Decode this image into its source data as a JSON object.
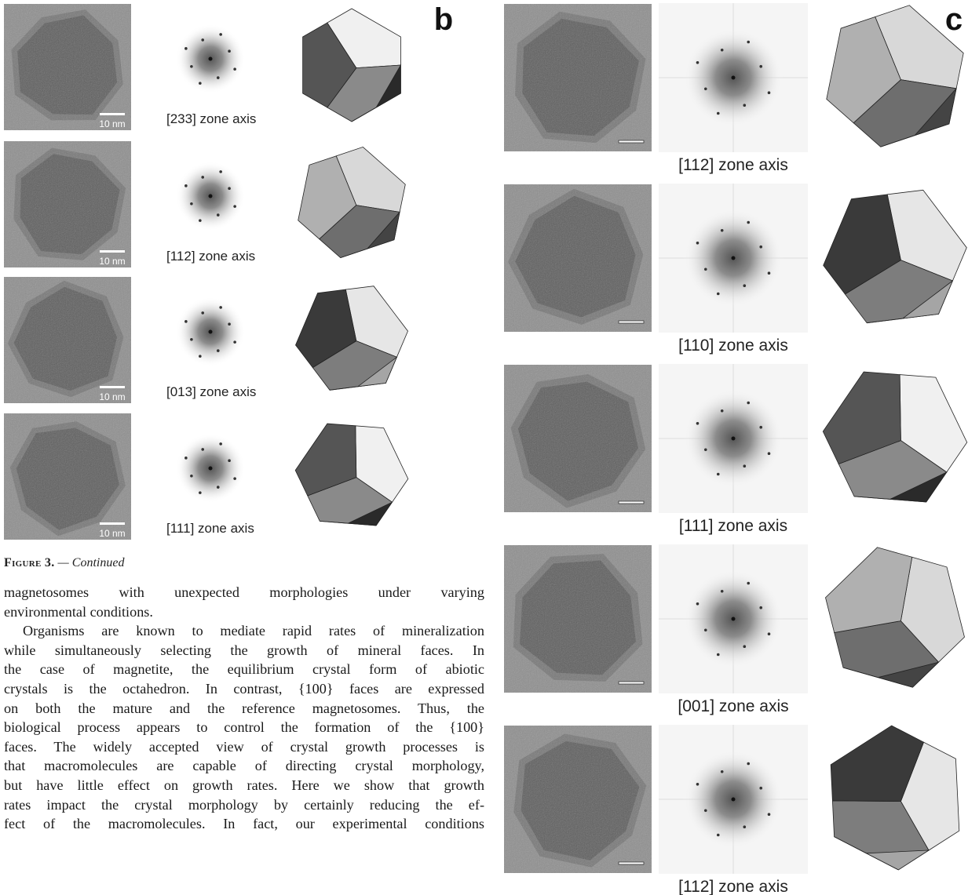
{
  "panels": [
    {
      "label": "b",
      "rows": [
        {
          "zone_axis": "[233] zone axis",
          "scale_bar": "10 nm"
        },
        {
          "zone_axis": "[112] zone axis",
          "scale_bar": "10 nm"
        },
        {
          "zone_axis": "[013] zone axis",
          "scale_bar": "10 nm"
        },
        {
          "zone_axis": "[111] zone axis",
          "scale_bar": "10 nm"
        }
      ]
    },
    {
      "label": "c",
      "rows": [
        {
          "zone_axis": "[112] zone axis"
        },
        {
          "zone_axis": "[110] zone axis"
        },
        {
          "zone_axis": "[111] zone axis"
        },
        {
          "zone_axis": "[001] zone axis"
        },
        {
          "zone_axis": "[112] zone axis"
        }
      ]
    }
  ],
  "caption": {
    "label": "Figure 3.",
    "text": "— Continued"
  },
  "body": {
    "paragraphs": [
      [
        "magnetosomes with unexpected morphologies under varying",
        "environmental conditions."
      ],
      [
        "Organisms are known to mediate rapid rates of mineralization",
        "while simultaneously selecting the growth of mineral faces. In",
        "the case of magnetite, the equilibrium crystal form of abiotic",
        "crystals is the octahedron. In contrast, {100} faces are expressed",
        "on both the mature and the reference magnetosomes. Thus, the",
        "biological process appears to control the formation of the {100}",
        "faces. The widely accepted view of crystal growth processes is",
        "that macromolecules are capable of directing crystal morphology,",
        "but have little effect on growth rates. Here we show that growth",
        "rates impact the crystal morphology by certainly reducing the ef-",
        "fect of the macromolecules. In fact, our experimental conditions"
      ]
    ]
  }
}
